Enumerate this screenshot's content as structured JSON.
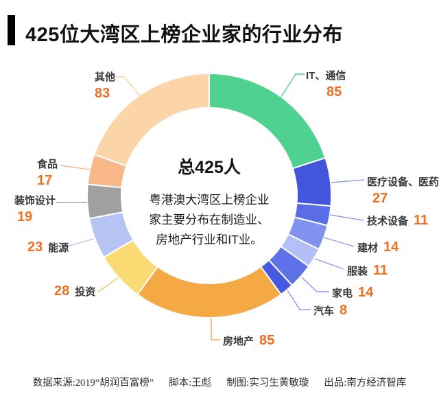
{
  "title": {
    "text": "425位大湾区上榜企业家的行业分布"
  },
  "center": {
    "total": "总425人",
    "desc_lines": [
      "粤港澳大湾区上榜企业",
      "家主要分布在制造业、",
      "房地产行业和IT业。"
    ]
  },
  "footer": {
    "items": [
      "数据来源:2019“胡润百富榜”",
      "脚本:王彪",
      "制图:实习生黄敏璇",
      "出品:南方经济智库"
    ]
  },
  "colors": {
    "value_text": "#ee6f20",
    "label_text": "#3a3a3a",
    "title_text": "#121212"
  },
  "chart_data": {
    "type": "pie",
    "subtype": "donut",
    "title": "425位大湾区上榜企业家的行业分布",
    "total": 425,
    "total_label": "总425人",
    "direction": "clockwise",
    "start_angle_deg": 0,
    "segments": [
      {
        "label": "IT、通信",
        "value": 85,
        "color": "#4fd190"
      },
      {
        "label": "医疗设备、医药",
        "value": 27,
        "color": "#4355dd"
      },
      {
        "label": "技术设备",
        "value": 11,
        "color": "#5b6de4"
      },
      {
        "label": "建材",
        "value": 14,
        "color": "#8191ee"
      },
      {
        "label": "服装",
        "value": 11,
        "color": "#b3c0f6"
      },
      {
        "label": "家电",
        "value": 14,
        "color": "#5f71e7"
      },
      {
        "label": "汽车",
        "value": 8,
        "color": "#4759e0"
      },
      {
        "label": "房地产",
        "value": 85,
        "color": "#f5a945"
      },
      {
        "label": "投资",
        "value": 28,
        "color": "#fada72"
      },
      {
        "label": "能源",
        "value": 23,
        "color": "#b6c4f3"
      },
      {
        "label": "装饰设计",
        "value": 19,
        "color": "#a0a0a0"
      },
      {
        "label": "食品",
        "value": 17,
        "color": "#f8b88a"
      },
      {
        "label": "其他",
        "value": 83,
        "color": "#fbd5a8"
      }
    ]
  }
}
